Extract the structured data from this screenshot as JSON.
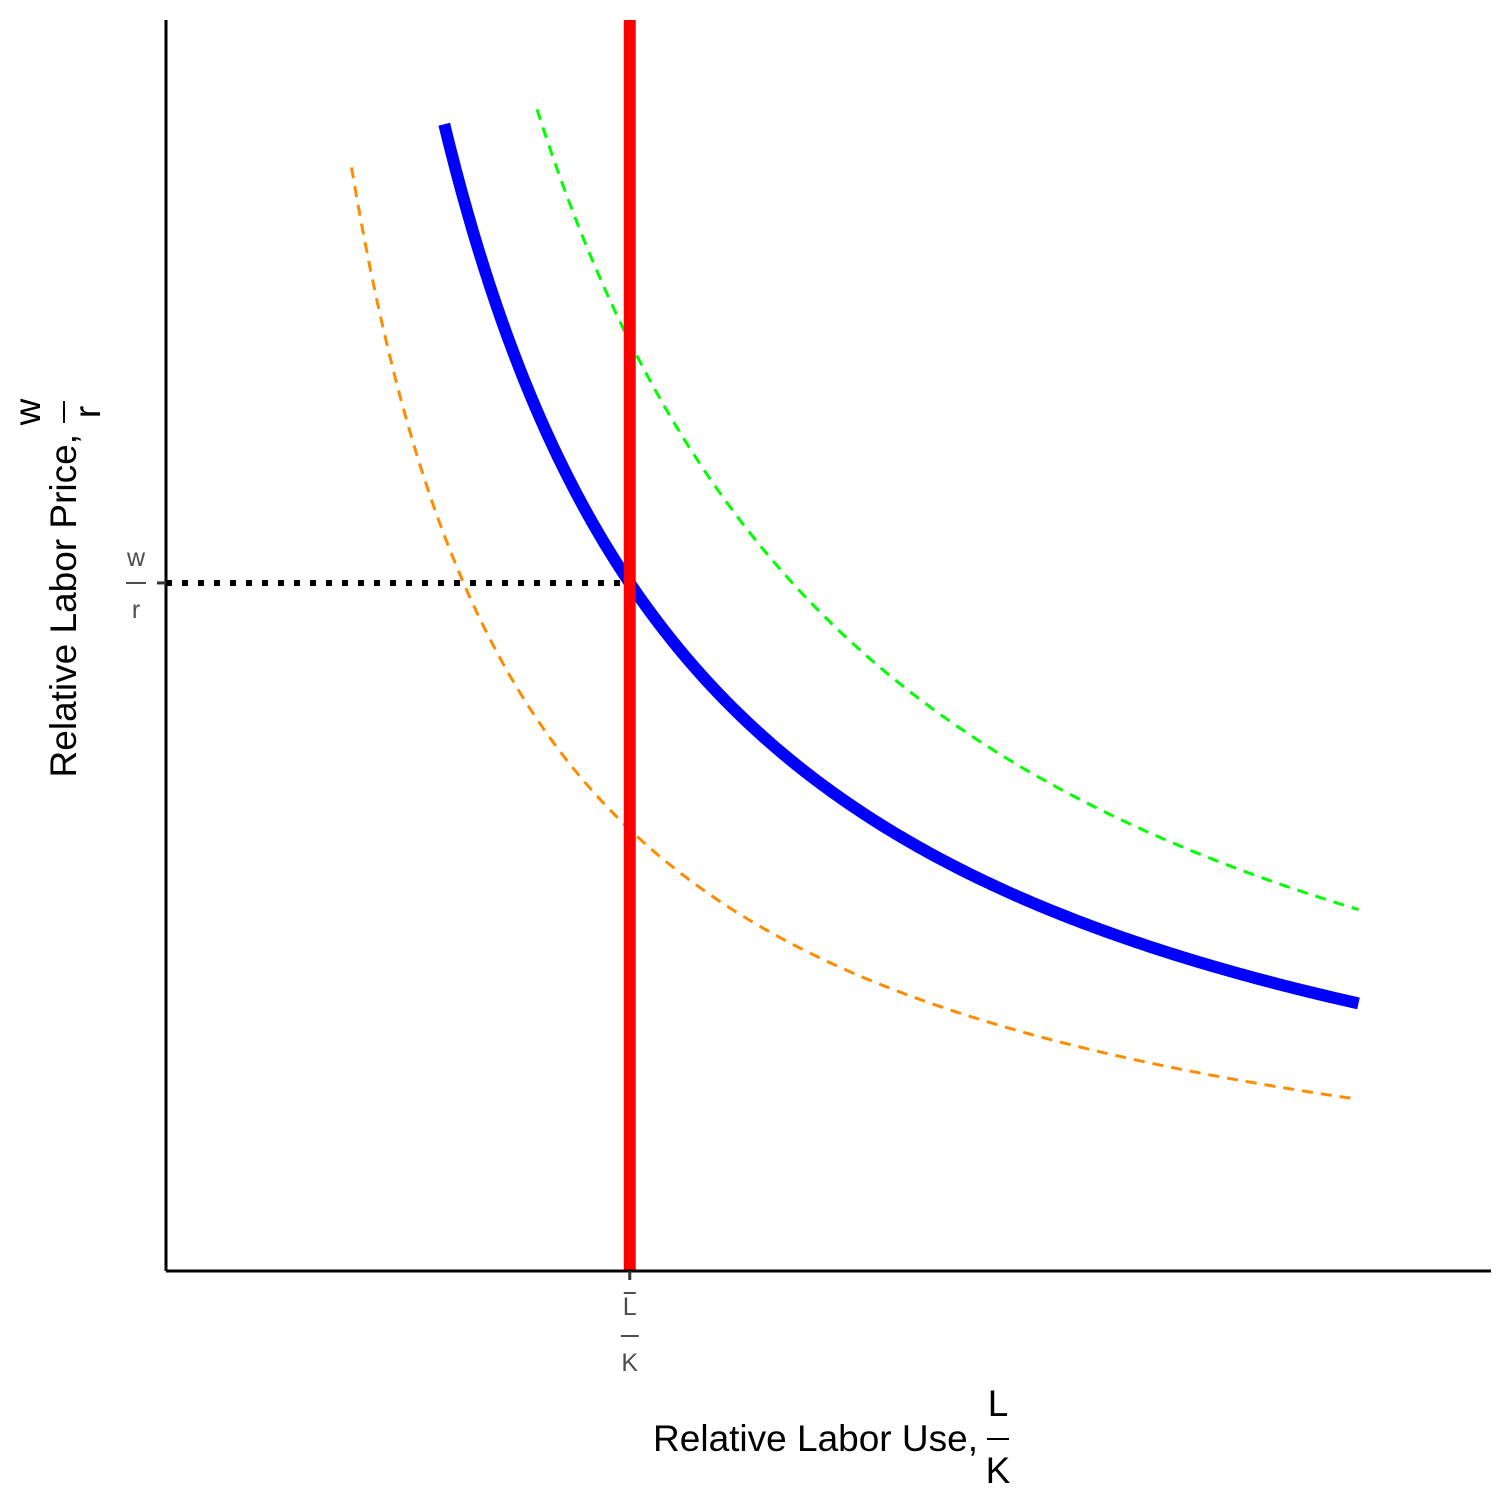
{
  "chart_data": {
    "type": "line",
    "title": "",
    "xlabel": {
      "text": "Relative Labor Use,",
      "frac_num": "L",
      "frac_den": "K"
    },
    "ylabel": {
      "text": "Relative Labor Price,",
      "frac_num": "w",
      "frac_den": "r"
    },
    "x_ticks": [
      {
        "x": 3.5,
        "num": "L",
        "den": "K",
        "overbar": true
      }
    ],
    "y_ticks": [
      {
        "y": 5.5,
        "num": "w",
        "den": "r",
        "overbar": false
      }
    ],
    "xlim": [
      0,
      10
    ],
    "ylim": [
      0,
      10
    ],
    "grid": false,
    "legend": "none",
    "curve_function": "y = k / x",
    "series": [
      {
        "style": "solid",
        "color": "#0000ff",
        "k": 19.25,
        "x_range": [
          2.1,
          9.0
        ]
      },
      {
        "style": "dashed",
        "color": "#ff8c00",
        "k": 12.35,
        "x_range": [
          1.4,
          9.0
        ]
      },
      {
        "style": "dashed",
        "color": "#00ff00",
        "k": 26.0,
        "x_range": [
          2.8,
          9.0
        ]
      }
    ],
    "vertical_line": {
      "x": 3.5,
      "color": "#ff0000",
      "style": "solid"
    },
    "reference_line": {
      "y": 5.5,
      "x_range": [
        0,
        3.5
      ],
      "color": "#000000",
      "style": "dotted"
    }
  }
}
